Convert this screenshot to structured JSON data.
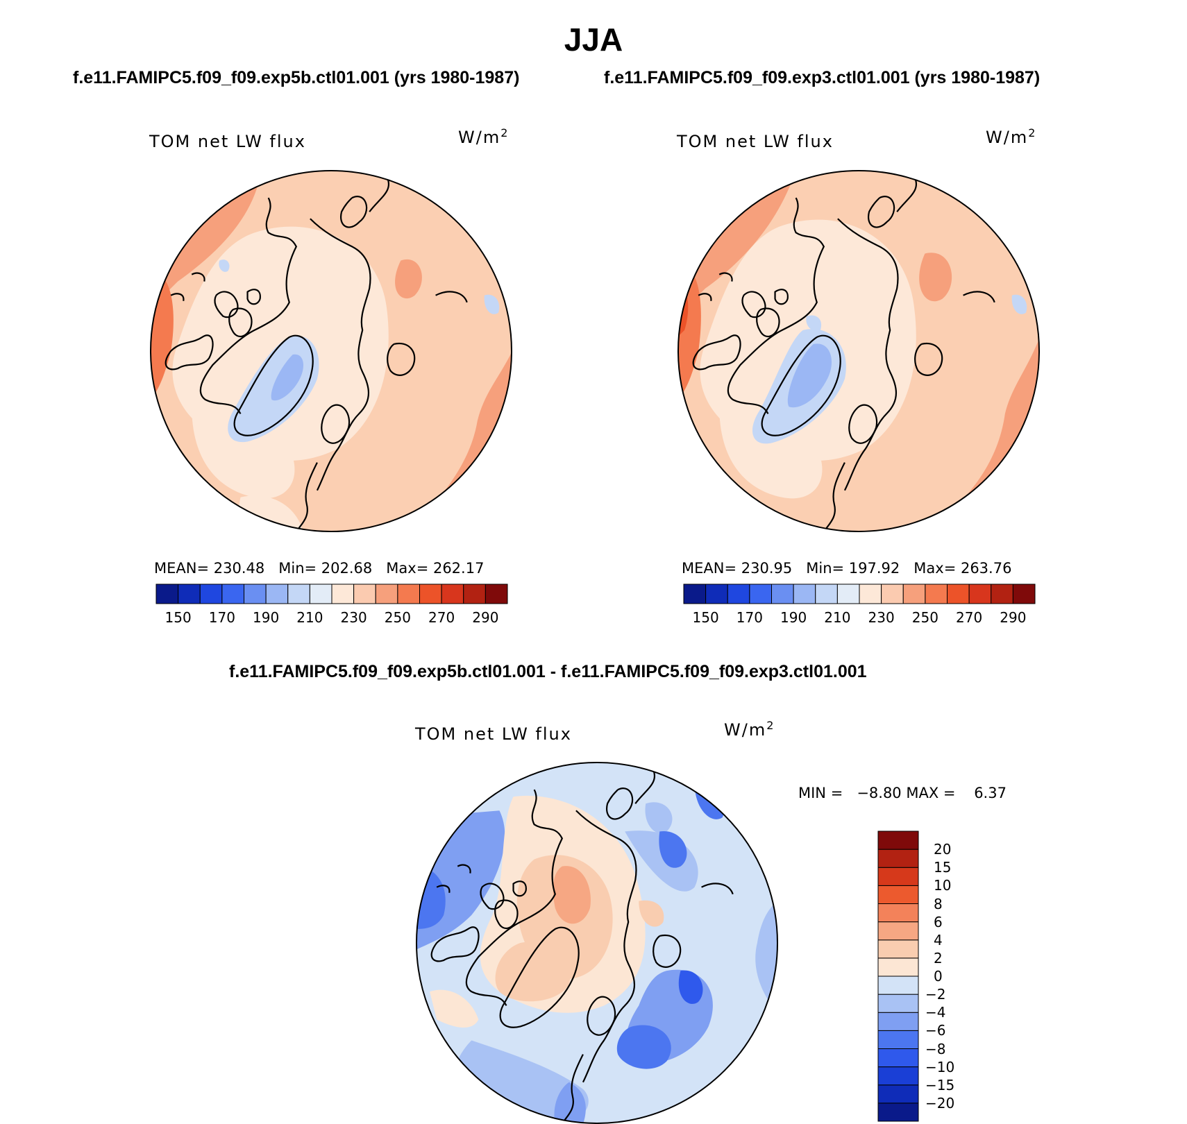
{
  "title": "JJA",
  "case_a": "f.e11.FAMIPC5.f09_f09.exp5b.ctl01.001 (yrs 1980-1987)",
  "case_b": "f.e11.FAMIPC5.f09_f09.exp3.ctl01.001 (yrs 1980-1987)",
  "diff_title": "f.e11.FAMIPC5.f09_f09.exp5b.ctl01.001 - f.e11.FAMIPC5.f09_f09.exp3.ctl01.001",
  "panels": [
    {
      "variable": "TOM net LW flux",
      "units": "W/m",
      "units_exp": "2",
      "stats": "MEAN= 230.48   Min= 202.68   Max= 262.17"
    },
    {
      "variable": "TOM net LW flux",
      "units": "W/m",
      "units_exp": "2",
      "stats": "MEAN= 230.95   Min= 197.92   Max= 263.76"
    },
    {
      "variable": "TOM net LW flux",
      "units": "W/m",
      "units_exp": "2",
      "stats": "MIN =   −8.80 MAX =    6.37"
    }
  ],
  "abs_colorbar": {
    "colors": [
      "#0a1a8a",
      "#0f2cb8",
      "#1f47e0",
      "#3a66f0",
      "#6a8ff2",
      "#9bb7f4",
      "#c4d7f6",
      "#e3ecf7",
      "#fde8d8",
      "#fbcbb0",
      "#f6a07c",
      "#f47a4f",
      "#ec5329",
      "#d8361d",
      "#b22212",
      "#7f0a0a"
    ],
    "labels": [
      "150",
      "170",
      "190",
      "210",
      "230",
      "250",
      "270",
      "290"
    ]
  },
  "diff_colorbar": {
    "colors": [
      "#0a1a8a",
      "#0f2cb8",
      "#1a3fd6",
      "#2f59ec",
      "#4c76f0",
      "#7f9ff2",
      "#a9c2f4",
      "#d3e3f7",
      "#fce6d4",
      "#f9cdb0",
      "#f6a783",
      "#f3825a",
      "#ec5a2e",
      "#d6391b",
      "#b22212",
      "#7f0a0a"
    ],
    "labels": [
      "20",
      "15",
      "10",
      "8",
      "6",
      "4",
      "2",
      "0",
      "−2",
      "−4",
      "−6",
      "−8",
      "−10",
      "−15",
      "−20"
    ]
  }
}
